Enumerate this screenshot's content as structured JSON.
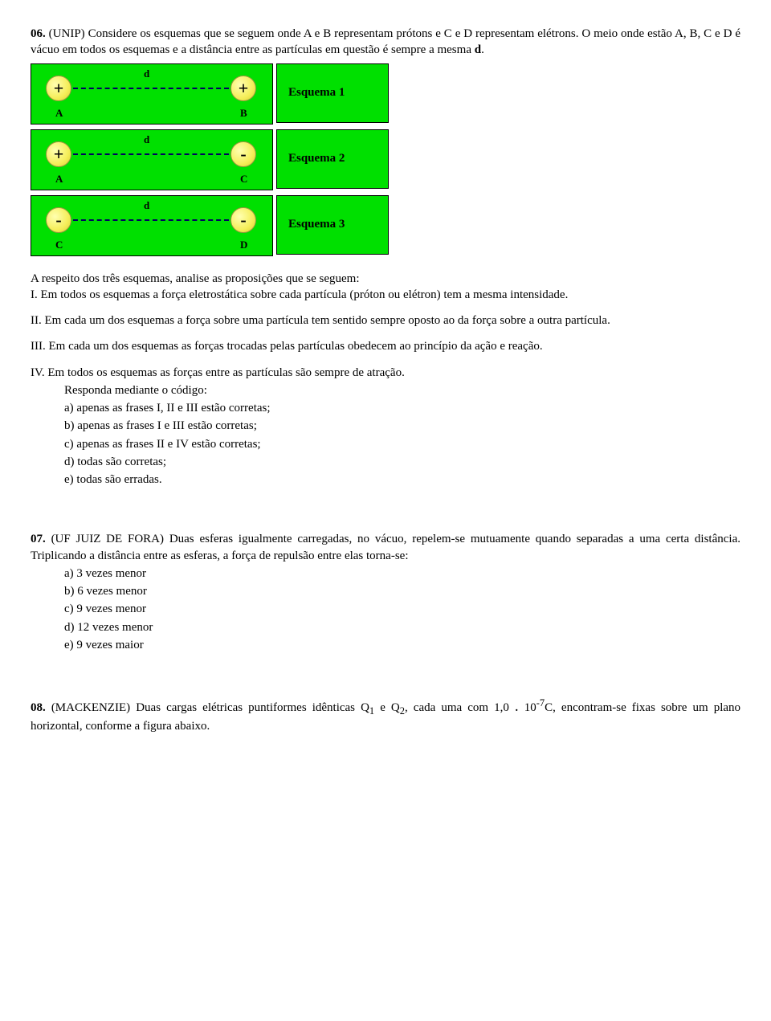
{
  "q06": {
    "number": "06.",
    "source": "(UNIP)",
    "stem_line1": "Considere os esquemas que se seguem onde A e B representam prótons e C e D representam elétrons. O meio onde estão A, B, C e D é vácuo em todos os esquemas e a distância entre as partículas em questão é sempre a mesma",
    "stem_d": "d",
    "stem_dot": ".",
    "schemas": [
      {
        "left_sign": "+",
        "right_sign": "+",
        "left_label": "A",
        "right_label": "B",
        "name": "Esquema 1"
      },
      {
        "left_sign": "+",
        "right_sign": "-",
        "left_label": "A",
        "right_label": "C",
        "name": "Esquema 2"
      },
      {
        "left_sign": "-",
        "right_sign": "-",
        "left_label": "C",
        "right_label": "D",
        "name": "Esquema 3"
      }
    ],
    "d_label": "d",
    "lead": "A respeito dos três esquemas, analise as proposições que se seguem:",
    "propI": "I. Em todos os esquemas a força eletrostática sobre cada partícula (próton ou elétron) tem a mesma intensidade.",
    "propII": "II. Em cada  um dos esquemas a força sobre uma partícula tem sentido sempre oposto ao da força sobre a outra partícula.",
    "propIII": "III. Em cada um dos esquemas as forças trocadas pelas partículas obedecem ao princípio da ação e reação.",
    "propIV": "IV. Em todos os esquemas as forças entre as partículas são sempre de atração.",
    "responda": "Responda mediante o código:",
    "opts": {
      "a": "a) apenas as frases I, II e III estão corretas;",
      "b": "b) apenas as frases I e III estão corretas;",
      "c": "c) apenas as frases II e IV estão corretas;",
      "d": "d) todas são corretas;",
      "e": "e) todas são erradas."
    }
  },
  "q07": {
    "number": "07.",
    "source": "(UF JUIZ DE FORA)",
    "stem": "Duas esferas igualmente carregadas, no vácuo, repelem-se mutuamente quando separadas a uma certa distância. Triplicando a distância entre as esferas, a força de repulsão entre elas torna-se:",
    "opts": {
      "a": "a) 3 vezes menor",
      "b": "b) 6 vezes menor",
      "c": "c) 9 vezes menor",
      "d": "d) 12 vezes menor",
      "e": "e) 9 vezes maior"
    }
  },
  "q08": {
    "number": "08.",
    "source": "(MACKENZIE)",
    "stem_a": "Duas cargas elétricas puntiformes idênticas Q",
    "sub1": "1",
    "stem_b": " e Q",
    "sub2": "2",
    "stem_c": ", cada uma com 1,0",
    "stem_dot": ".",
    "stem_d": "10",
    "sup": "-7",
    "stem_e": "C, encontram-se fixas sobre um plano horizontal, conforme a figura abaixo."
  }
}
